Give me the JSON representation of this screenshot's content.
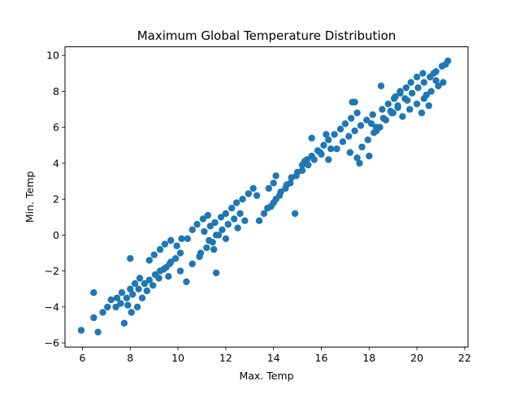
{
  "chart_data": {
    "type": "scatter",
    "title": "Maximum Global Temperature Distribution",
    "xlabel": "Max. Temp",
    "ylabel": "Min. Temp",
    "xlim": [
      5.27,
      22.14
    ],
    "ylim": [
      -6.23,
      10.48
    ],
    "x_ticks": [
      6,
      8,
      10,
      12,
      14,
      16,
      18,
      20,
      22
    ],
    "y_ticks": [
      -6,
      -4,
      -2,
      0,
      2,
      4,
      6,
      8,
      10
    ],
    "grid": false,
    "legend": "none",
    "marker_color": "#1f77b4",
    "series": [
      {
        "x": [
          5.95,
          6.47,
          6.65,
          6.47,
          6.85,
          7.05,
          7.2,
          7.45,
          7.65,
          7.85,
          8.0,
          8.2,
          8.4,
          7.4,
          7.6,
          7.9,
          8.1,
          8.35,
          8.6,
          8.8,
          9.05,
          9.25,
          9.5,
          9.7,
          7.75,
          8.05,
          8.3,
          8.5,
          8.7,
          8.95,
          9.2,
          9.4,
          9.65,
          9.9,
          10.1,
          8.8,
          9.0,
          9.25,
          9.45,
          9.7,
          9.95,
          10.15,
          10.4,
          10.6,
          10.8,
          11.05,
          11.25,
          8.0,
          10.1,
          10.35,
          9.6,
          10.6,
          10.9,
          11.5,
          11.1,
          11.35,
          11.55,
          11.8,
          12.0,
          12.25,
          12.45,
          12.7,
          12.95,
          13.15,
          11.3,
          11.6,
          11.85,
          12.1,
          12.35,
          12.6,
          10.95,
          11.2,
          11.45,
          11.7,
          12.0,
          11.6,
          12.5,
          12.8,
          13.3,
          13.4,
          13.6,
          13.9,
          14.1,
          14.3,
          14.55,
          14.75,
          15.0,
          15.2,
          15.4,
          13.75,
          14.0,
          14.25,
          14.5,
          14.7,
          14.95,
          15.2,
          15.45,
          15.7,
          15.95,
          14.1,
          14.9,
          13.8,
          14.0,
          15.3,
          15.6,
          15.85,
          16.1,
          16.3,
          16.55,
          16.8,
          17.0,
          17.25,
          17.5,
          16.0,
          16.3,
          16.65,
          16.9,
          17.15,
          17.4,
          17.65,
          17.9,
          18.15,
          17.2,
          17.5,
          17.7,
          17.95,
          18.2,
          18.45,
          18.7,
          18.95,
          19.2,
          17.4,
          17.3,
          17.6,
          18.0,
          18.1,
          18.3,
          18.55,
          18.8,
          19.05,
          19.3,
          19.55,
          19.75,
          20.0,
          20.25,
          18.3,
          18.6,
          18.9,
          19.2,
          19.5,
          19.8,
          20.05,
          20.3,
          20.55,
          20.8,
          21.05,
          21.3,
          19.4,
          19.7,
          20.0,
          20.3,
          20.6,
          20.9,
          21.1,
          19.1,
          19.6,
          20.4,
          20.7,
          21.2,
          18.5,
          19.0,
          19.3,
          20.2,
          20.5,
          20.8,
          16.2,
          16.4,
          15.6
        ],
        "y": [
          -5.3,
          -3.2,
          -5.4,
          -4.6,
          -4.3,
          -4.0,
          -3.6,
          -3.5,
          -3.2,
          -3.5,
          -3.0,
          -2.7,
          -2.4,
          -4.0,
          -3.8,
          -3.9,
          -3.3,
          -3.0,
          -2.7,
          -2.5,
          -2.2,
          -2.0,
          -1.8,
          -1.5,
          -4.9,
          -4.3,
          -4.0,
          -3.5,
          -3.1,
          -2.8,
          -2.4,
          -1.9,
          -1.6,
          -1.3,
          -1.0,
          -1.4,
          -1.1,
          -0.8,
          -0.5,
          -0.3,
          -0.6,
          -0.2,
          -0.2,
          0.3,
          0.6,
          0.9,
          1.1,
          -1.3,
          -2.0,
          -2.6,
          -2.3,
          -1.6,
          -1.2,
          -0.8,
          0.2,
          0.5,
          0.7,
          1.0,
          1.2,
          1.5,
          1.8,
          2.0,
          2.3,
          2.6,
          -0.3,
          0.0,
          0.3,
          0.6,
          0.9,
          1.2,
          -1.0,
          -0.7,
          -0.4,
          0.0,
          -0.2,
          -2.1,
          0.4,
          0.8,
          2.2,
          0.8,
          1.2,
          1.6,
          2.0,
          2.4,
          2.8,
          3.2,
          3.5,
          3.9,
          4.2,
          1.5,
          1.8,
          2.2,
          2.6,
          2.9,
          3.3,
          3.6,
          3.9,
          4.2,
          4.6,
          3.3,
          1.2,
          2.6,
          2.9,
          4.1,
          4.4,
          4.7,
          5.0,
          5.3,
          5.6,
          5.9,
          6.2,
          6.5,
          6.8,
          4.5,
          4.2,
          4.8,
          5.2,
          5.5,
          5.8,
          6.1,
          6.4,
          6.7,
          4.6,
          4.3,
          4.9,
          5.3,
          5.7,
          6.0,
          6.4,
          6.8,
          7.1,
          7.4,
          7.4,
          4.0,
          4.4,
          6.2,
          5.8,
          7.0,
          7.3,
          7.6,
          7.9,
          8.2,
          8.5,
          8.8,
          9.0,
          6.0,
          6.5,
          6.9,
          7.2,
          7.6,
          7.9,
          8.2,
          8.5,
          8.8,
          9.1,
          9.4,
          9.7,
          6.6,
          7.0,
          7.3,
          7.6,
          8.0,
          8.3,
          8.5,
          7.7,
          7.5,
          7.8,
          9.0,
          9.5,
          8.3,
          6.8,
          8.0,
          6.8,
          7.2,
          8.6,
          5.6,
          4.8,
          5.4
        ]
      }
    ]
  }
}
